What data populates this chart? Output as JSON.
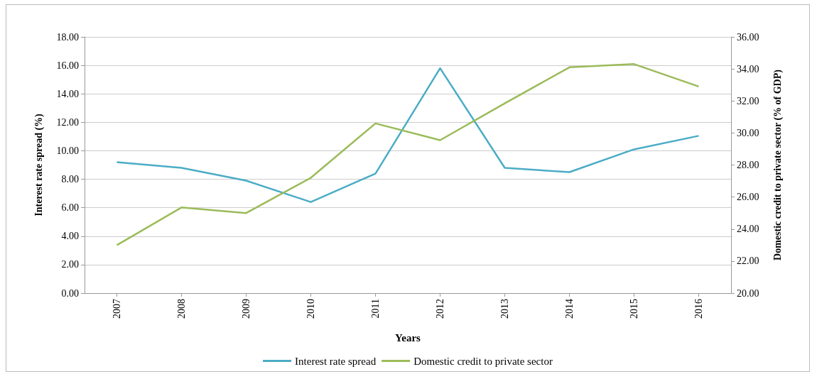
{
  "chart_data": {
    "type": "line",
    "xlabel": "Years",
    "ylabel": "Interest rate spread (%)",
    "y2label": "Domestic credit to private sector (% of GDP)",
    "categories": [
      "2007",
      "2008",
      "2009",
      "2010",
      "2011",
      "2012",
      "2013",
      "2014",
      "2015",
      "2016"
    ],
    "series": [
      {
        "name": "Interest rate spread",
        "color": "#4bacc6",
        "values": [
          9.2,
          8.8,
          7.9,
          6.4,
          8.4,
          15.8,
          8.8,
          8.5,
          10.1,
          11.05
        ]
      },
      {
        "name": "Domestic credit to private sector",
        "color": "#9bbb59",
        "axis": "y2",
        "values": [
          23.0,
          25.35,
          25.0,
          27.2,
          30.6,
          29.55,
          31.85,
          34.1,
          34.3,
          32.9
        ]
      }
    ],
    "ylim": [
      0,
      18
    ],
    "yticks": [
      {
        "value": 0,
        "label": "0.00"
      },
      {
        "value": 2,
        "label": "2.00"
      },
      {
        "value": 4,
        "label": "4.00"
      },
      {
        "value": 6,
        "label": "6.00"
      },
      {
        "value": 8,
        "label": "8.00"
      },
      {
        "value": 10,
        "label": "10.00"
      },
      {
        "value": 12,
        "label": "12.00"
      },
      {
        "value": 14,
        "label": "14.00"
      },
      {
        "value": 16,
        "label": "16.00"
      },
      {
        "value": 18,
        "label": "18.00"
      }
    ],
    "y2lim": [
      20,
      36
    ],
    "y2ticks": [
      {
        "value": 20,
        "label": "20.00"
      },
      {
        "value": 22,
        "label": "22.00"
      },
      {
        "value": 24,
        "label": "24.00"
      },
      {
        "value": 26,
        "label": "26.00"
      },
      {
        "value": 28,
        "label": "28.00"
      },
      {
        "value": 30,
        "label": "30.00"
      },
      {
        "value": 32,
        "label": "32.00"
      },
      {
        "value": 34,
        "label": "34.00"
      },
      {
        "value": 36,
        "label": "36.00"
      }
    ],
    "grid": "y",
    "legend": "bottom",
    "marker": "none",
    "line_style": "solid"
  }
}
